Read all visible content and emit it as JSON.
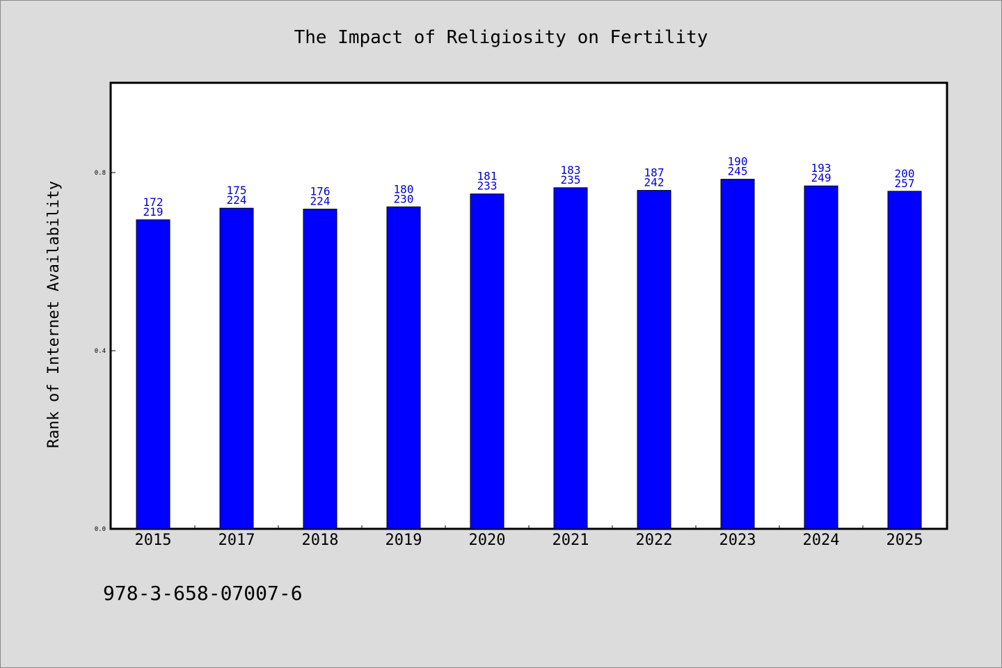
{
  "chart_data": {
    "type": "bar",
    "title": "The Impact of Religiosity on Fertility",
    "xlabel": "",
    "ylabel": "Rank of Internet Availability",
    "ylim": [
      0,
      1.0
    ],
    "yticks": [
      "0.0",
      "0.4",
      "0.8"
    ],
    "ytick_values": [
      0.0,
      0.4,
      0.8
    ],
    "categories": [
      "2015",
      "2017",
      "2018",
      "2019",
      "2020",
      "2021",
      "2022",
      "2023",
      "2024",
      "2025"
    ],
    "values": [
      0.694,
      0.72,
      0.718,
      0.723,
      0.752,
      0.766,
      0.76,
      0.785,
      0.77,
      0.758
    ],
    "labels_top": [
      "172",
      "175",
      "176",
      "180",
      "181",
      "183",
      "187",
      "190",
      "193",
      "200"
    ],
    "labels_bottom": [
      "219",
      "224",
      "224",
      "230",
      "233",
      "235",
      "242",
      "245",
      "249",
      "257"
    ],
    "bar_color": "#0000ff",
    "label_color": "#0000cc",
    "grid": false
  },
  "footer_text": "978-3-658-07007-6"
}
